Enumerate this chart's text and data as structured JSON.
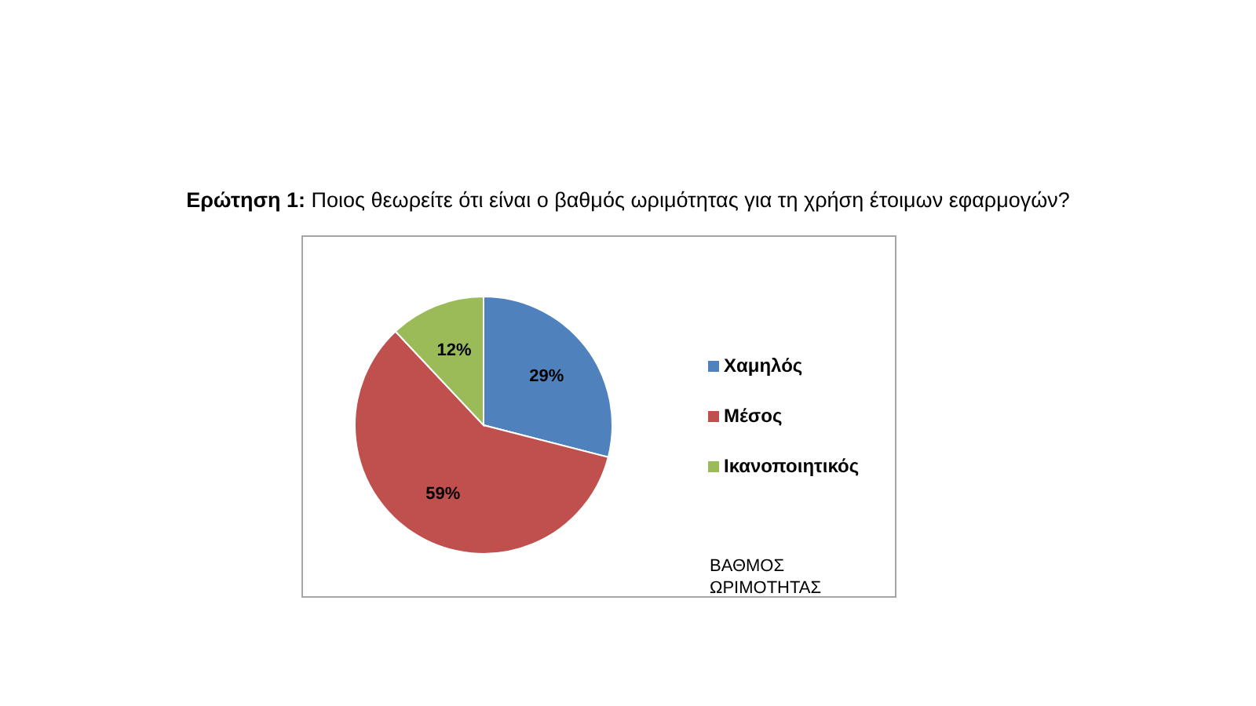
{
  "chart_data": {
    "type": "pie",
    "title": "Ερώτηση 1:",
    "subtitle": "Ποιος θεωρείτε ότι είναι ο βαθμός ωριμότητας για τη χρήση έτοιμων εφαρμογών?",
    "categories": [
      "Χαμηλός",
      "Μέσος",
      "Ικανοποιητικός"
    ],
    "values": [
      29,
      59,
      12
    ],
    "colors": [
      "#4f81bd",
      "#c0504d",
      "#9bbb59"
    ],
    "value_labels": [
      "29%",
      "59%",
      "12%"
    ],
    "legend": "right",
    "annotations": [
      "ΒΑΘΜΟΣ ΩΡΙΜΟΤΗΤΑΣ"
    ]
  }
}
